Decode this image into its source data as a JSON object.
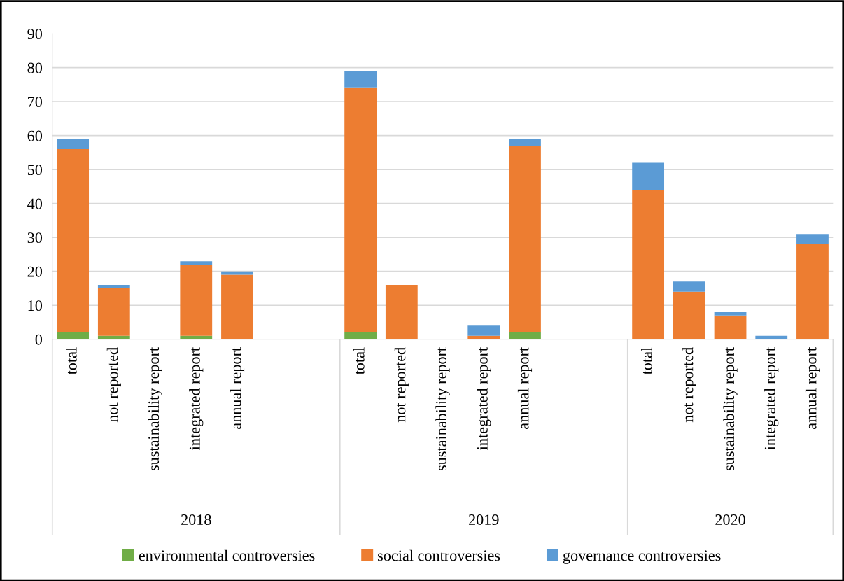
{
  "chart_data": {
    "type": "bar",
    "stacked": true,
    "categories": [
      "total",
      "not reported",
      "sustainability report",
      "integrated report",
      "annual report",
      null,
      null,
      "total",
      "not reported",
      "sustainability report",
      "integrated report",
      "annual report",
      null,
      null,
      "total",
      "not reported",
      "sustainability report",
      "integrated report",
      "annual report"
    ],
    "series": [
      {
        "name": "environmental controversies",
        "color": "#70ad47",
        "values": [
          2,
          1,
          0,
          1,
          0,
          null,
          null,
          2,
          0,
          0,
          0,
          2,
          null,
          null,
          0,
          0,
          0,
          0,
          0
        ]
      },
      {
        "name": "social controversies",
        "color": "#ed7d31",
        "values": [
          54,
          14,
          0,
          21,
          19,
          null,
          null,
          72,
          16,
          0,
          1,
          55,
          null,
          null,
          44,
          14,
          7,
          0,
          28
        ]
      },
      {
        "name": "governance controversies",
        "color": "#5b9bd5",
        "values": [
          3,
          1,
          0,
          1,
          1,
          null,
          null,
          5,
          0,
          0,
          3,
          2,
          null,
          null,
          8,
          3,
          1,
          1,
          3
        ]
      }
    ],
    "ylim": [
      0,
      90
    ],
    "yticks": [
      0,
      10,
      20,
      30,
      40,
      50,
      60,
      70,
      80,
      90
    ],
    "grid": "y",
    "legend": "bottom",
    "annotations": [
      "2018",
      "2019",
      "2020"
    ]
  }
}
